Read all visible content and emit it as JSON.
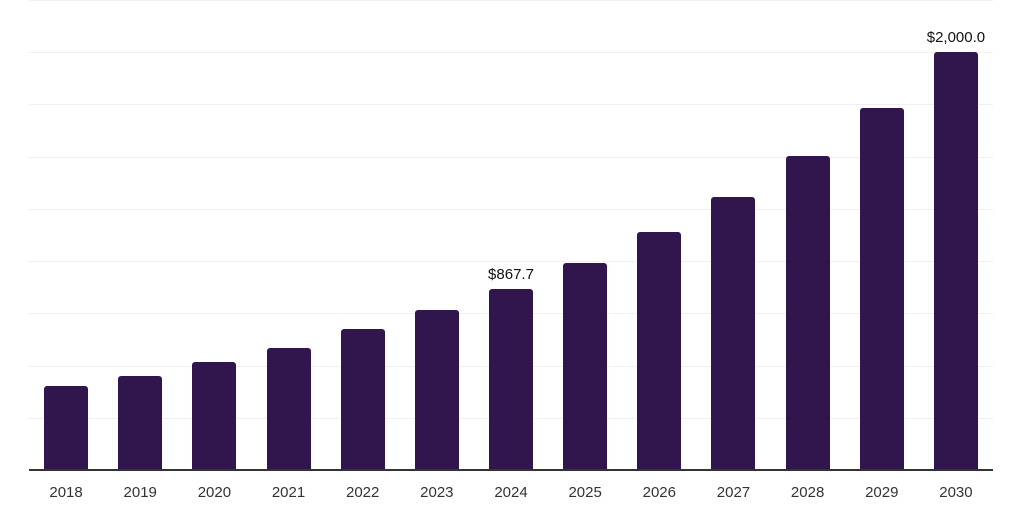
{
  "chart_data": {
    "type": "bar",
    "title": "",
    "xlabel": "",
    "ylabel": "",
    "categories": [
      "2018",
      "2019",
      "2020",
      "2021",
      "2022",
      "2023",
      "2024",
      "2025",
      "2026",
      "2027",
      "2028",
      "2029",
      "2030"
    ],
    "values": [
      400,
      452,
      515,
      586,
      673,
      764,
      867.7,
      993,
      1139,
      1307,
      1503,
      1733,
      2000
    ],
    "data_labels": [
      "",
      "",
      "",
      "",
      "",
      "",
      "$867.7",
      "",
      "",
      "",
      "",
      "",
      "$2,000.0"
    ],
    "ylim": [
      0,
      2250
    ],
    "grid_step": 250,
    "grid": "horizontal",
    "legend_position": "none",
    "colors": {
      "bar": "#31164E",
      "gridline": "#f0f0f2",
      "axis_line": "#333333",
      "tick_label": "#333333",
      "data_label": "#111111",
      "background": "#ffffff"
    }
  }
}
